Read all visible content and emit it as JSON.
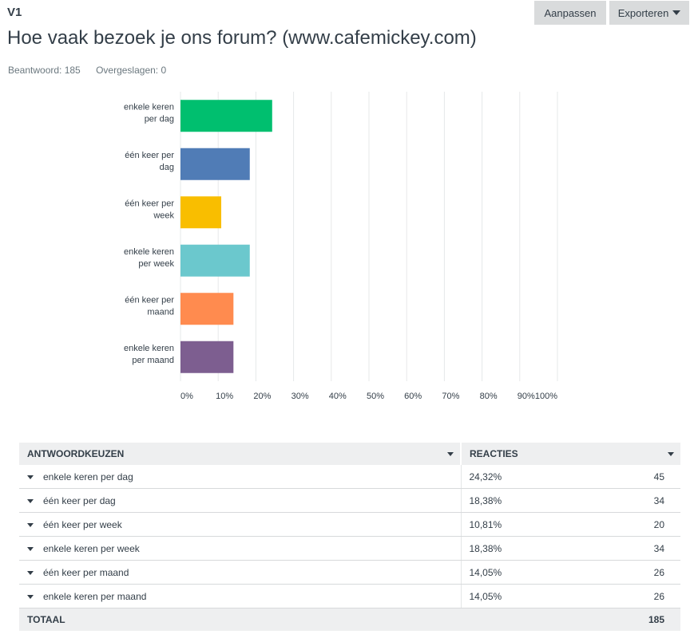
{
  "question": {
    "number": "V1",
    "title": "Hoe vaak bezoek je ons forum? (www.cafemickey.com)",
    "answered": "Beantwoord: 185",
    "skipped": "Overgeslagen: 0"
  },
  "toolbar": {
    "edit_label": "Aanpassen",
    "export_label": "Exporteren"
  },
  "chart_data": {
    "type": "bar",
    "orientation": "horizontal",
    "categories": [
      [
        "enkele keren",
        "per dag"
      ],
      [
        "één keer per",
        "dag"
      ],
      [
        "één keer per",
        "week"
      ],
      [
        "enkele keren",
        "per week"
      ],
      [
        "één keer per",
        "maand"
      ],
      [
        "enkele keren",
        "per maand"
      ]
    ],
    "values": [
      24.32,
      18.38,
      10.81,
      18.38,
      14.05,
      14.05
    ],
    "colors": [
      "#00bf6f",
      "#507cb6",
      "#f9be00",
      "#6bc8cd",
      "#ff8b4f",
      "#7d5e90"
    ],
    "xlim": [
      0,
      100
    ],
    "xticks": [
      "0%",
      "10%",
      "20%",
      "30%",
      "40%",
      "50%",
      "60%",
      "70%",
      "80%",
      "90%",
      "100%"
    ],
    "grid": true
  },
  "table": {
    "headers": {
      "choice": "ANTWOORDKEUZEN",
      "responses": "REACTIES"
    },
    "rows": [
      {
        "label": "enkele keren per dag",
        "percent": "24,32%",
        "count": "45"
      },
      {
        "label": "één keer per dag",
        "percent": "18,38%",
        "count": "34"
      },
      {
        "label": "één keer per week",
        "percent": "10,81%",
        "count": "20"
      },
      {
        "label": "enkele keren per week",
        "percent": "18,38%",
        "count": "34"
      },
      {
        "label": "één keer per maand",
        "percent": "14,05%",
        "count": "26"
      },
      {
        "label": "enkele keren per maand",
        "percent": "14,05%",
        "count": "26"
      }
    ],
    "total": {
      "label": "TOTAAL",
      "count": "185"
    }
  }
}
